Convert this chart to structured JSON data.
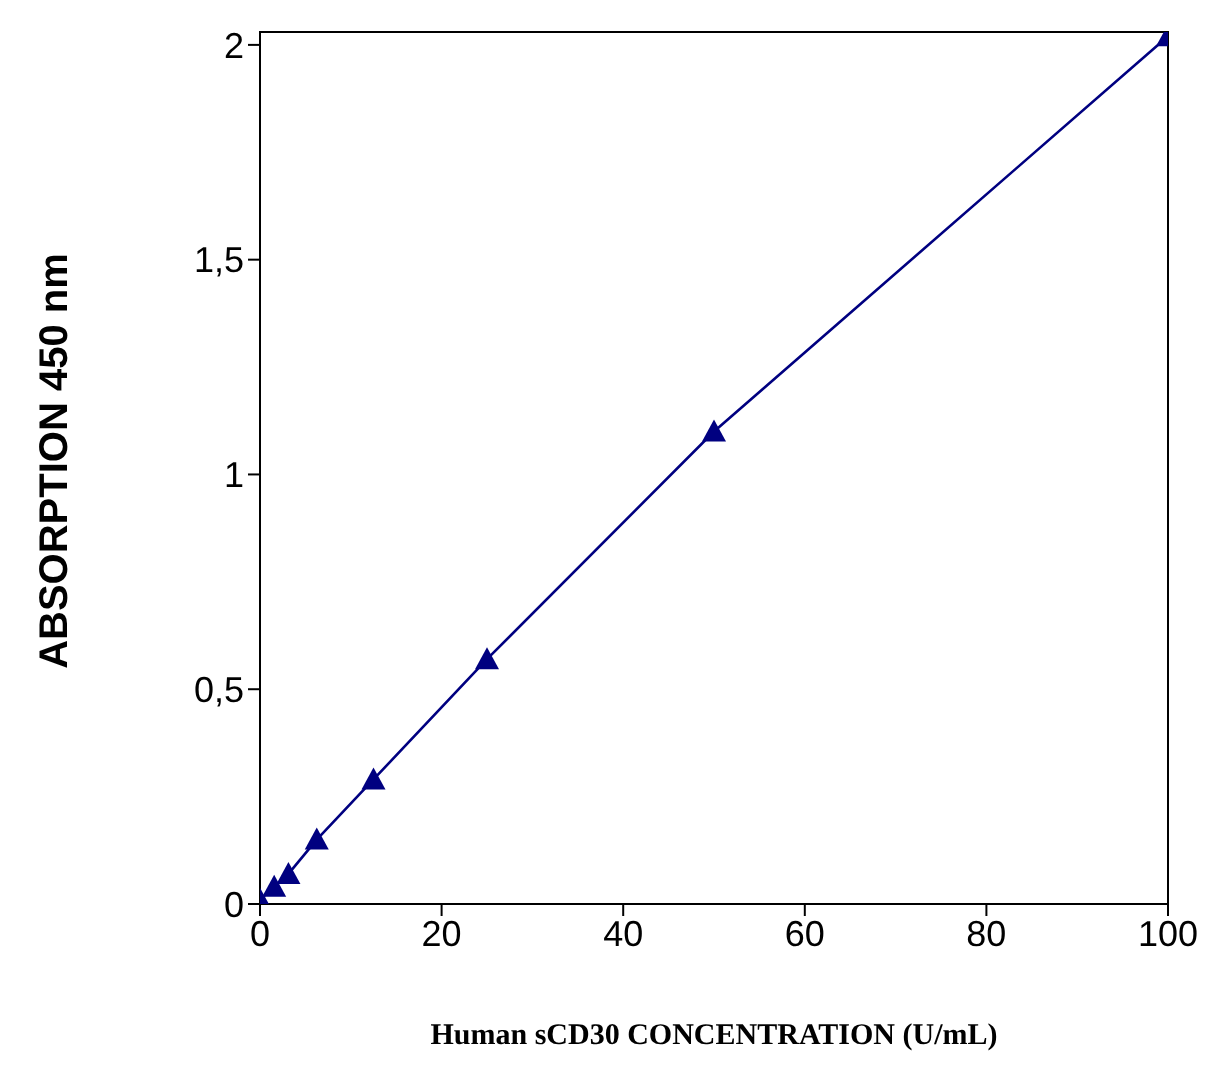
{
  "chart_data": {
    "type": "line",
    "xlabel": "Human sCD30 CONCENTRATION (U/mL)",
    "ylabel": "ABSORPTION 450 nm",
    "x": [
      0,
      1.56,
      3.13,
      6.25,
      12.5,
      25,
      50,
      100
    ],
    "series": [
      {
        "color": "#000080",
        "values": [
          0.01,
          0.04,
          0.07,
          0.15,
          0.29,
          0.57,
          1.1,
          2.02
        ]
      }
    ],
    "xlim": [
      0,
      100
    ],
    "xticks": [
      0,
      20,
      40,
      60,
      80,
      100
    ],
    "ylim": [
      0,
      2.03
    ],
    "yticks": [
      0,
      {
        "value": 0.5,
        "label": "0,5"
      },
      1,
      {
        "value": 1.5,
        "label": "1,5"
      },
      2
    ],
    "marker": "triangle",
    "line_style": "solid"
  }
}
